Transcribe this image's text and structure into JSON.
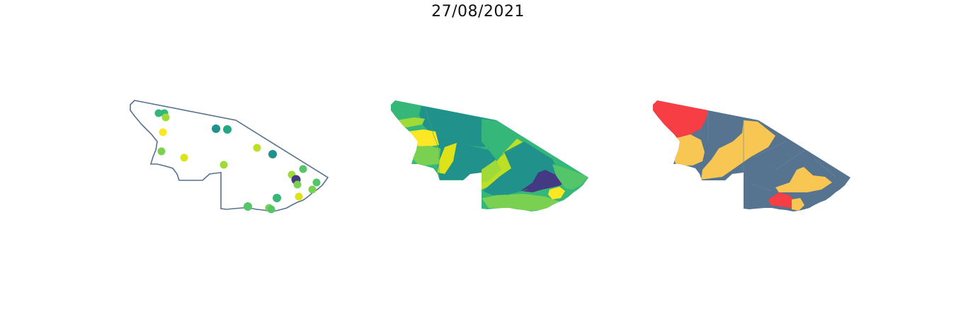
{
  "title": "27/08/2021",
  "colors": {
    "outline": "#55718f",
    "viridis_dark": "#443a83",
    "viridis_teal": "#21918c",
    "viridis_green": "#35b779",
    "viridis_lime": "#7ad151",
    "viridis_yellowgreen": "#bddf26",
    "viridis_yellow": "#fde725",
    "risk_slate": "#56748f",
    "risk_amber": "#f7c653",
    "risk_red": "#f63e44"
  },
  "panels": [
    {
      "name": "points-map",
      "kind": "outline with colored point markers"
    },
    {
      "name": "choropleth-viridis",
      "kind": "regions filled on viridis scale"
    },
    {
      "name": "choropleth-risk",
      "kind": "regions filled on 3-level scale"
    }
  ]
}
